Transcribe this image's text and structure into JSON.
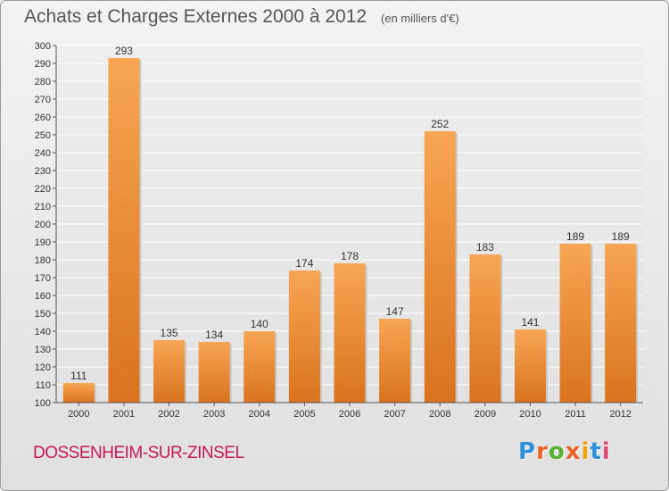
{
  "header": {
    "title": "Achats et Charges Externes 2000 à 2012",
    "unit": "(en milliers d'€)"
  },
  "footer": {
    "city": "DOSSENHEIM-SUR-ZINSEL",
    "logo_text": "Proxiti"
  },
  "colors": {
    "bar_light": "#f7a654",
    "bar_dark": "#d9731f",
    "city": "#c8185a",
    "logo": [
      "#2f8fd8",
      "#e8622a",
      "#5ab031",
      "#e8622a",
      "#f0a010",
      "#2f8fd8",
      "#e04a7a"
    ]
  },
  "chart_data": {
    "type": "bar",
    "categories": [
      "2000",
      "2001",
      "2002",
      "2003",
      "2004",
      "2005",
      "2006",
      "2007",
      "2008",
      "2009",
      "2010",
      "2011",
      "2012"
    ],
    "values": [
      111,
      293,
      135,
      134,
      140,
      174,
      178,
      147,
      252,
      183,
      141,
      189,
      189
    ],
    "title": "Achats et Charges Externes 2000 à 2012",
    "ylim": [
      100,
      300
    ],
    "yticks": [
      100,
      110,
      120,
      130,
      140,
      150,
      160,
      170,
      180,
      190,
      200,
      210,
      220,
      230,
      240,
      250,
      260,
      270,
      280,
      290,
      300
    ],
    "grid": true,
    "legend": "none"
  }
}
